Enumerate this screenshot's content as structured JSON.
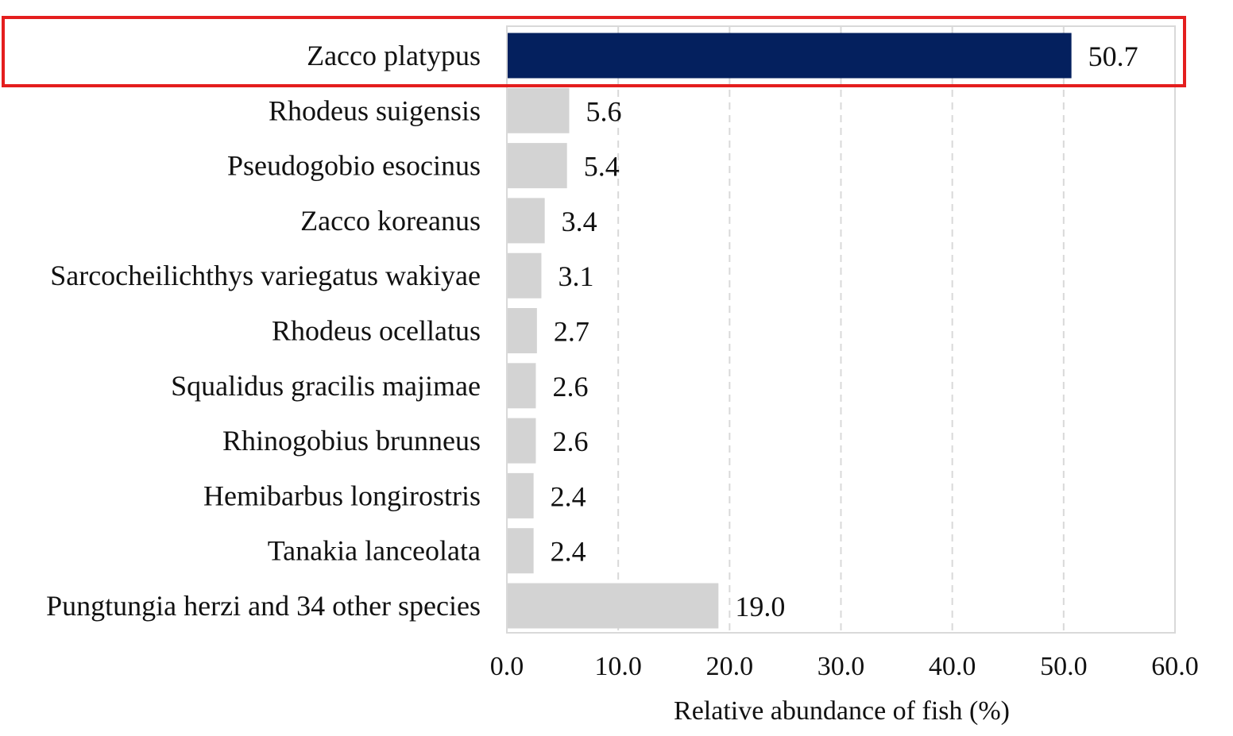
{
  "chart_data": {
    "type": "bar",
    "orientation": "horizontal",
    "categories": [
      "Zacco platypus",
      "Rhodeus suigensis",
      "Pseudogobio esocinus",
      "Zacco koreanus",
      "Sarcocheilichthys variegatus wakiyae",
      "Rhodeus ocellatus",
      "Squalidus gracilis majimae",
      "Rhinogobius brunneus",
      "Hemibarbus longirostris",
      "Tanakia lanceolata",
      "Pungtungia herzi and 34 other species"
    ],
    "values": [
      50.7,
      5.6,
      5.4,
      3.4,
      3.1,
      2.7,
      2.6,
      2.6,
      2.4,
      2.4,
      19.0
    ],
    "value_labels": [
      "50.7",
      "5.6",
      "5.4",
      "3.4",
      "3.1",
      "2.7",
      "2.6",
      "2.6",
      "2.4",
      "2.4",
      "19.0"
    ],
    "xlabel": "Relative abundance of fish  (%)",
    "ylabel": "",
    "xlim": [
      0,
      60
    ],
    "xticks": [
      0,
      10,
      20,
      30,
      40,
      50,
      60
    ],
    "xtick_labels": [
      "0.0",
      "10.0",
      "20.0",
      "30.0",
      "40.0",
      "50.0",
      "60.0"
    ],
    "grid": "vertical dashed",
    "highlight_index": 0,
    "highlight_annotation": "red box",
    "colors": {
      "highlight_bar": "#04205e",
      "default_bar": "#d3d3d3",
      "gridline": "#d9d9d9",
      "plot_border": "#d9d9d9",
      "highlight_box": "#e41e1e"
    }
  }
}
